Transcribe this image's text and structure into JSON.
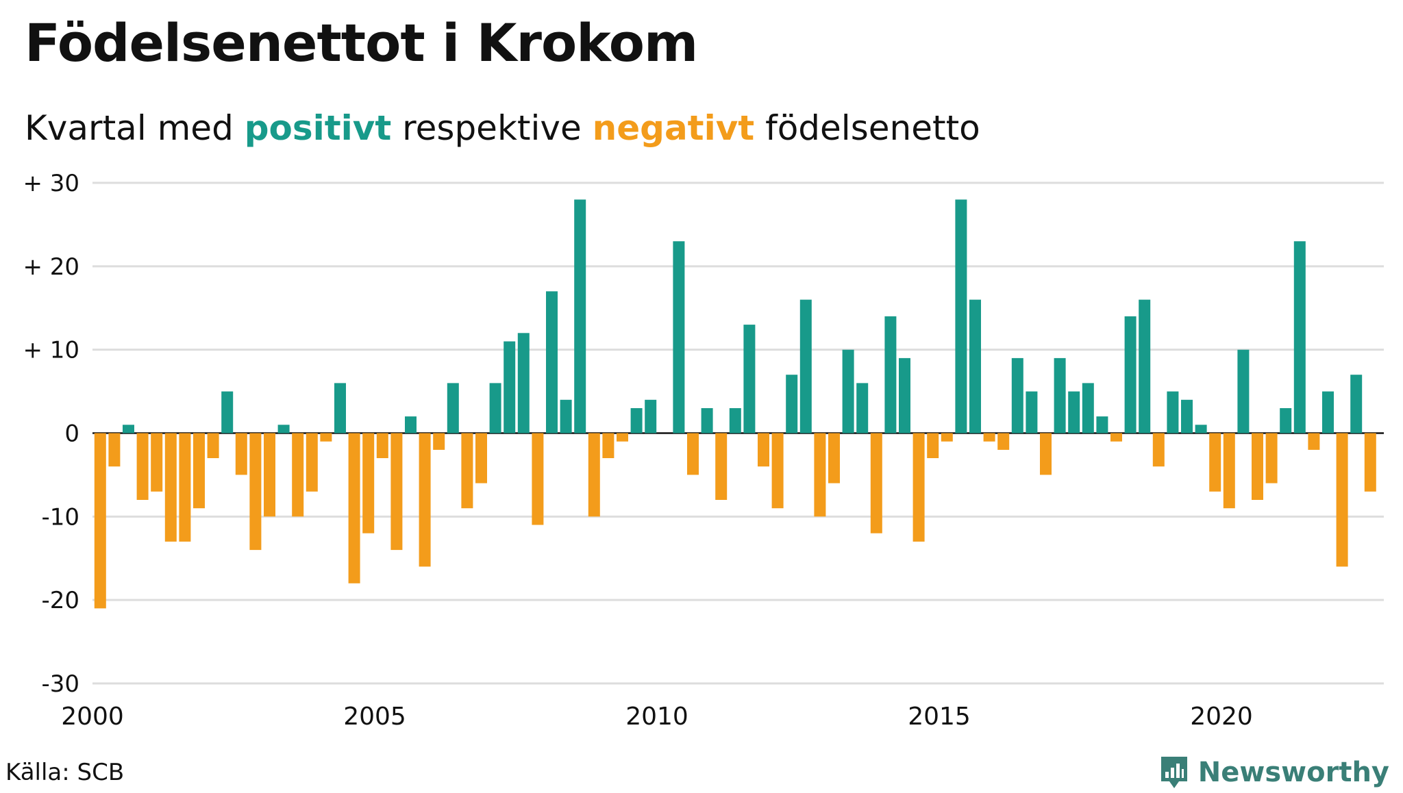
{
  "title": "Födelsenettot i Krokom",
  "subtitle": {
    "prefix": "Kvartal med ",
    "positive": "positivt",
    "middle": " respektive ",
    "negative": "negativt",
    "suffix": " födelsenetto"
  },
  "source": "Källa: SCB",
  "brand": "Newsworthy",
  "colors": {
    "positive": "#189a8a",
    "negative": "#f39c1b",
    "grid": "#dddddd",
    "zero": "#111111"
  },
  "chart_data": {
    "type": "bar",
    "title": "Födelsenettot i Krokom",
    "xlabel": "",
    "ylabel": "",
    "ylim": [
      -30,
      30
    ],
    "yticks": [
      30,
      20,
      10,
      0,
      -10,
      -20,
      -30
    ],
    "ytick_labels": [
      "+ 30",
      "+ 20",
      "+ 10",
      "0",
      "-10",
      "-20",
      "-30"
    ],
    "xticks": [
      2000,
      2005,
      2010,
      2015,
      2020
    ],
    "start_year": 2000,
    "periods_per_year": 4,
    "values": [
      -21,
      -4,
      1,
      -8,
      -7,
      -13,
      -13,
      -9,
      -3,
      5,
      -5,
      -14,
      -10,
      1,
      -10,
      -7,
      -1,
      6,
      -18,
      -12,
      -3,
      -14,
      2,
      -16,
      -2,
      6,
      -9,
      -6,
      6,
      11,
      12,
      -11,
      17,
      4,
      28,
      -10,
      -3,
      -1,
      3,
      4,
      0,
      23,
      -5,
      3,
      -8,
      3,
      13,
      -4,
      -9,
      7,
      16,
      -10,
      -6,
      10,
      6,
      -12,
      14,
      9,
      -13,
      -3,
      -1,
      28,
      16,
      -1,
      -2,
      9,
      5,
      -5,
      9,
      5,
      6,
      2,
      -1,
      14,
      16,
      -4,
      5,
      4,
      1,
      -7,
      -9,
      10,
      -8,
      -6,
      3,
      23,
      -2,
      5,
      -16,
      7,
      -7
    ]
  }
}
